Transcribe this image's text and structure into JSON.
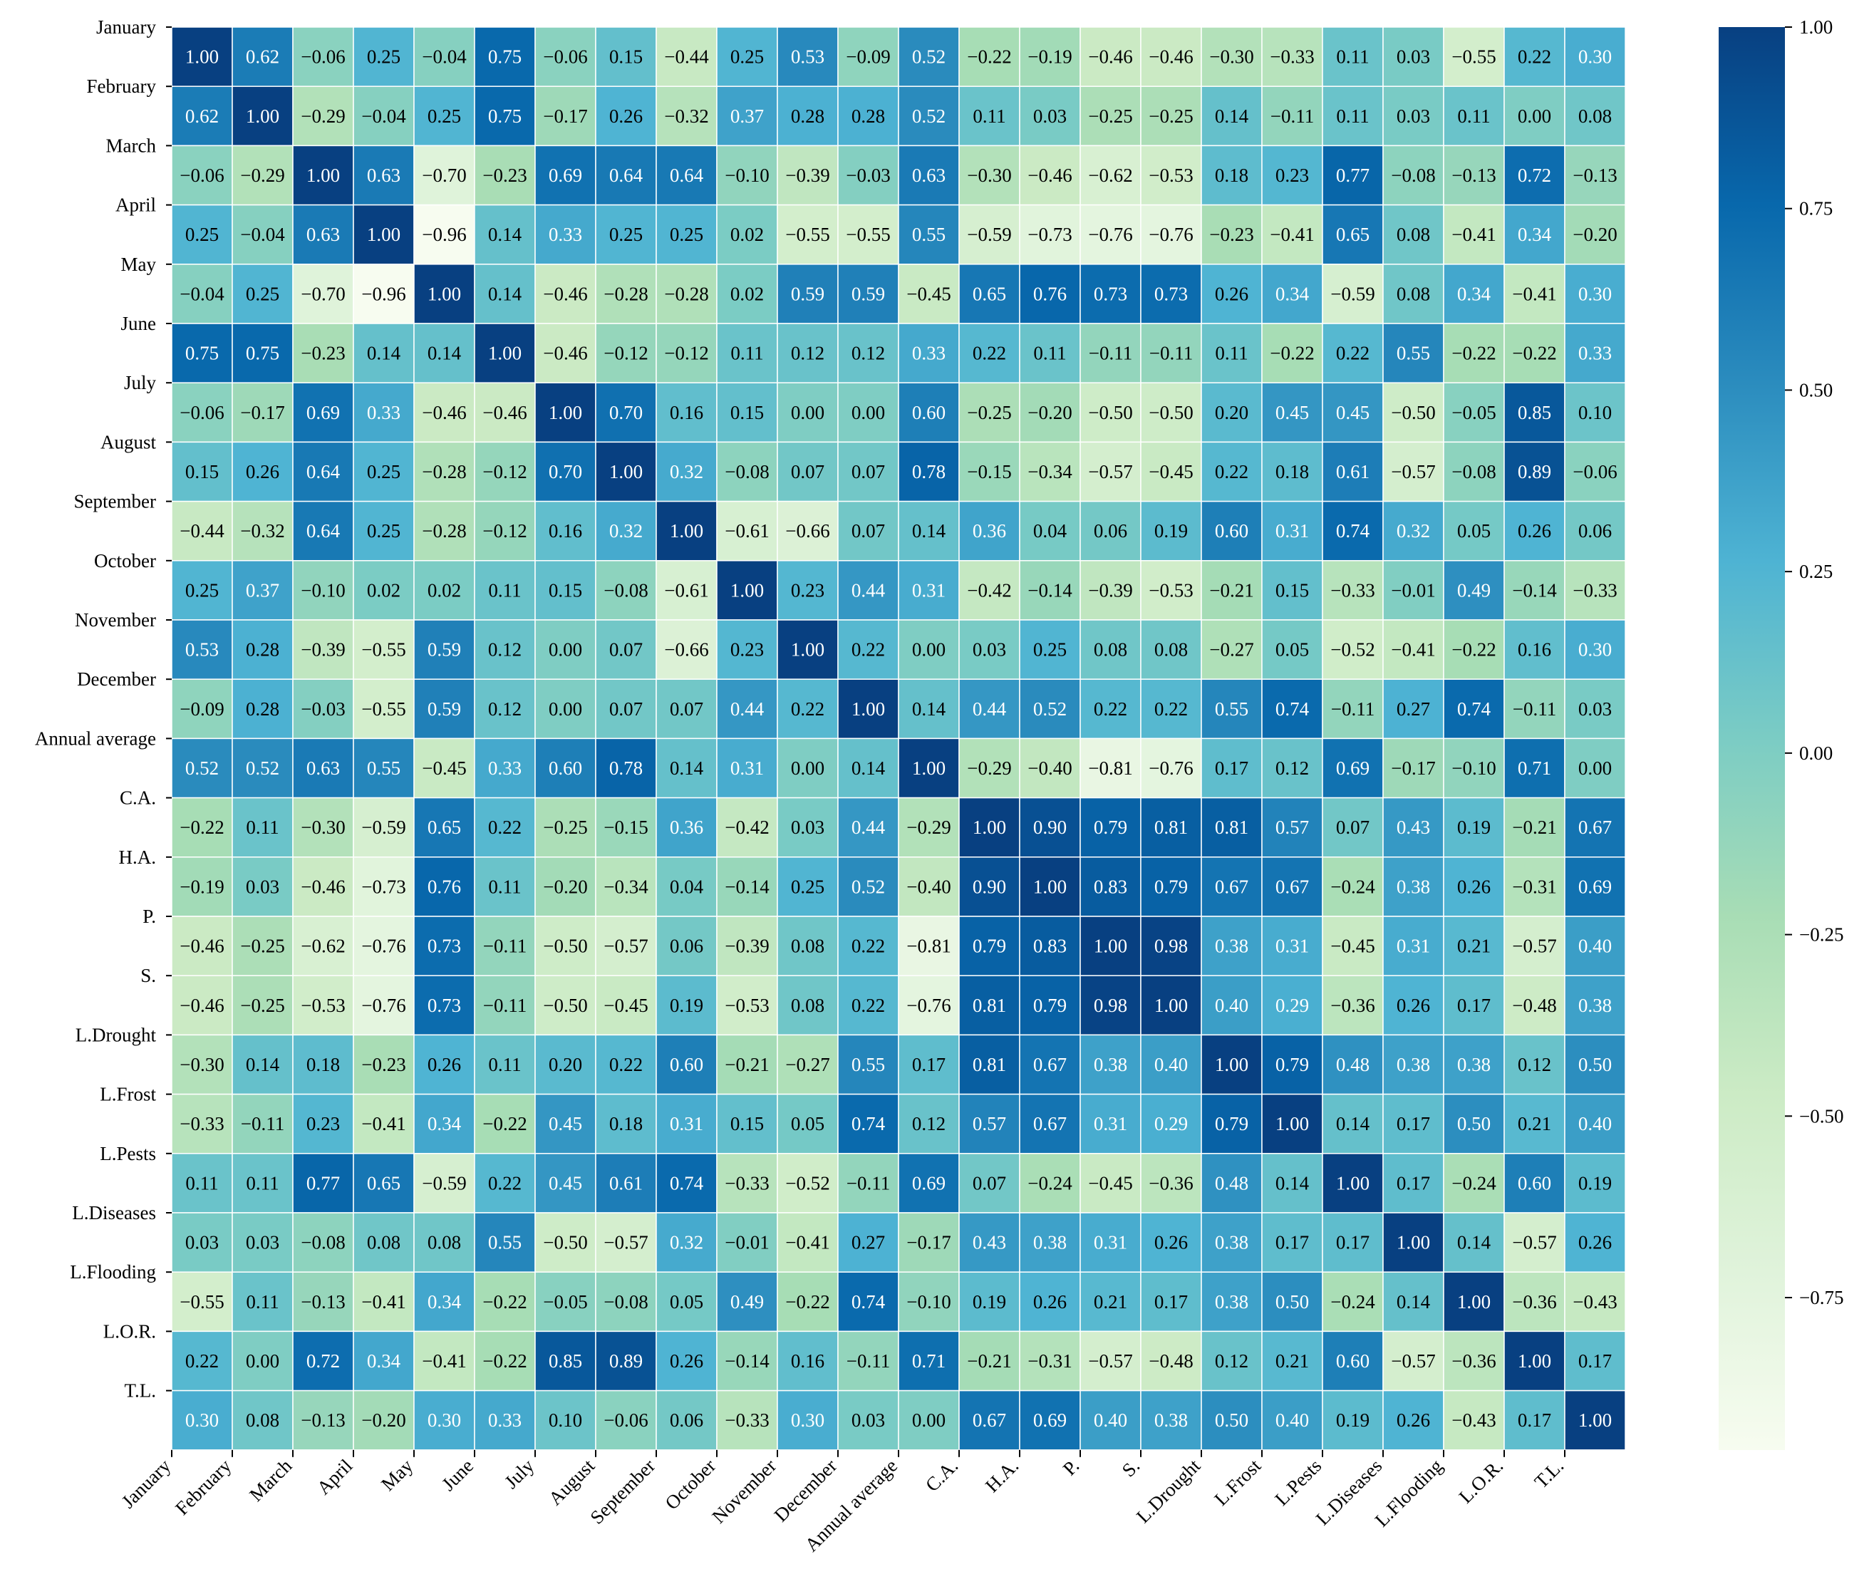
{
  "chart_data": {
    "type": "heatmap",
    "title": "",
    "xlabel": "",
    "ylabel": "",
    "labels": [
      "January",
      "February",
      "March",
      "April",
      "May",
      "June",
      "July",
      "August",
      "September",
      "October",
      "November",
      "December",
      "Annual average",
      "C.A.",
      "H.A.",
      "P.",
      "S.",
      "L.Drought",
      "L.Frost",
      "L.Pests",
      "L.Diseases",
      "L.Flooding",
      "L.O.R.",
      "T.L."
    ],
    "cell_text": [
      [
        "1.00",
        "0.62",
        "−0.06",
        "0.25",
        "−0.04",
        "0.75",
        "−0.06",
        "0.15",
        "−0.44",
        "0.25",
        "0.53",
        "−0.09",
        "0.52",
        "−0.22",
        "−0.19",
        "−0.46",
        "−0.46",
        "−0.30",
        "−0.33",
        "0.11",
        "0.03",
        "−0.55",
        "0.22",
        "0.30"
      ],
      [
        "0.62",
        "1.00",
        "−0.29",
        "−0.04",
        "0.25",
        "0.75",
        "−0.17",
        "0.26",
        "−0.32",
        "0.37",
        "0.28",
        "0.28",
        "0.52",
        "0.11",
        "0.03",
        "−0.25",
        "−0.25",
        "0.14",
        "−0.11",
        "0.11",
        "0.03",
        "0.11",
        "0.00",
        "0.08"
      ],
      [
        "−0.06",
        "−0.29",
        "1.00",
        "0.63",
        "−0.70",
        "−0.23",
        "0.69",
        "0.64",
        "0.64",
        "−0.10",
        "−0.39",
        "−0.03",
        "0.63",
        "−0.30",
        "−0.46",
        "−0.62",
        "−0.53",
        "0.18",
        "0.23",
        "0.77",
        "−0.08",
        "−0.13",
        "0.72",
        "−0.13"
      ],
      [
        "0.25",
        "−0.04",
        "0.63",
        "1.00",
        "−0.96",
        "0.14",
        "0.33",
        "0.25",
        "0.25",
        "0.02",
        "−0.55",
        "−0.55",
        "0.55",
        "−0.59",
        "−0.73",
        "−0.76",
        "−0.76",
        "−0.23",
        "−0.41",
        "0.65",
        "0.08",
        "−0.41",
        "0.34",
        "−0.20"
      ],
      [
        "−0.04",
        "0.25",
        "−0.70",
        "−0.96",
        "1.00",
        "0.14",
        "−0.46",
        "−0.28",
        "−0.28",
        "0.02",
        "0.59",
        "0.59",
        "−0.45",
        "0.65",
        "0.76",
        "0.73",
        "0.73",
        "0.26",
        "0.34",
        "−0.59",
        "0.08",
        "0.34",
        "−0.41",
        "0.30"
      ],
      [
        "0.75",
        "0.75",
        "−0.23",
        "0.14",
        "0.14",
        "1.00",
        "−0.46",
        "−0.12",
        "−0.12",
        "0.11",
        "0.12",
        "0.12",
        "0.33",
        "0.22",
        "0.11",
        "−0.11",
        "−0.11",
        "0.11",
        "−0.22",
        "0.22",
        "0.55",
        "−0.22",
        "−0.22",
        "0.33"
      ],
      [
        "−0.06",
        "−0.17",
        "0.69",
        "0.33",
        "−0.46",
        "−0.46",
        "1.00",
        "0.70",
        "0.16",
        "0.15",
        "0.00",
        "0.00",
        "0.60",
        "−0.25",
        "−0.20",
        "−0.50",
        "−0.50",
        "0.20",
        "0.45",
        "0.45",
        "−0.50",
        "−0.05",
        "0.85",
        "0.10"
      ],
      [
        "0.15",
        "0.26",
        "0.64",
        "0.25",
        "−0.28",
        "−0.12",
        "0.70",
        "1.00",
        "0.32",
        "−0.08",
        "0.07",
        "0.07",
        "0.78",
        "−0.15",
        "−0.34",
        "−0.57",
        "−0.45",
        "0.22",
        "0.18",
        "0.61",
        "−0.57",
        "−0.08",
        "0.89",
        "−0.06"
      ],
      [
        "−0.44",
        "−0.32",
        "0.64",
        "0.25",
        "−0.28",
        "−0.12",
        "0.16",
        "0.32",
        "1.00",
        "−0.61",
        "−0.66",
        "0.07",
        "0.14",
        "0.36",
        "0.04",
        "0.06",
        "0.19",
        "0.60",
        "0.31",
        "0.74",
        "0.32",
        "0.05",
        "0.26",
        "0.06"
      ],
      [
        "0.25",
        "0.37",
        "−0.10",
        "0.02",
        "0.02",
        "0.11",
        "0.15",
        "−0.08",
        "−0.61",
        "1.00",
        "0.23",
        "0.44",
        "0.31",
        "−0.42",
        "−0.14",
        "−0.39",
        "−0.53",
        "−0.21",
        "0.15",
        "−0.33",
        "−0.01",
        "0.49",
        "−0.14",
        "−0.33"
      ],
      [
        "0.53",
        "0.28",
        "−0.39",
        "−0.55",
        "0.59",
        "0.12",
        "0.00",
        "0.07",
        "−0.66",
        "0.23",
        "1.00",
        "0.22",
        "0.00",
        "0.03",
        "0.25",
        "0.08",
        "0.08",
        "−0.27",
        "0.05",
        "−0.52",
        "−0.41",
        "−0.22",
        "0.16",
        "0.30"
      ],
      [
        "−0.09",
        "0.28",
        "−0.03",
        "−0.55",
        "0.59",
        "0.12",
        "0.00",
        "0.07",
        "0.07",
        "0.44",
        "0.22",
        "1.00",
        "0.14",
        "0.44",
        "0.52",
        "0.22",
        "0.22",
        "0.55",
        "0.74",
        "−0.11",
        "0.27",
        "0.74",
        "−0.11",
        "0.03"
      ],
      [
        "0.52",
        "0.52",
        "0.63",
        "0.55",
        "−0.45",
        "0.33",
        "0.60",
        "0.78",
        "0.14",
        "0.31",
        "0.00",
        "0.14",
        "1.00",
        "−0.29",
        "−0.40",
        "−0.81",
        "−0.76",
        "0.17",
        "0.12",
        "0.69",
        "−0.17",
        "−0.10",
        "0.71",
        "0.00"
      ],
      [
        "−0.22",
        "0.11",
        "−0.30",
        "−0.59",
        "0.65",
        "0.22",
        "−0.25",
        "−0.15",
        "0.36",
        "−0.42",
        "0.03",
        "0.44",
        "−0.29",
        "1.00",
        "0.90",
        "0.79",
        "0.81",
        "0.81",
        "0.57",
        "0.07",
        "0.43",
        "0.19",
        "−0.21",
        "0.67"
      ],
      [
        "−0.19",
        "0.03",
        "−0.46",
        "−0.73",
        "0.76",
        "0.11",
        "−0.20",
        "−0.34",
        "0.04",
        "−0.14",
        "0.25",
        "0.52",
        "−0.40",
        "0.90",
        "1.00",
        "0.83",
        "0.79",
        "0.67",
        "0.67",
        "−0.24",
        "0.38",
        "0.26",
        "−0.31",
        "0.69"
      ],
      [
        "−0.46",
        "−0.25",
        "−0.62",
        "−0.76",
        "0.73",
        "−0.11",
        "−0.50",
        "−0.57",
        "0.06",
        "−0.39",
        "0.08",
        "0.22",
        "−0.81",
        "0.79",
        "0.83",
        "1.00",
        "0.98",
        "0.38",
        "0.31",
        "−0.45",
        "0.31",
        "0.21",
        "−0.57",
        "0.40"
      ],
      [
        "−0.46",
        "−0.25",
        "−0.53",
        "−0.76",
        "0.73",
        "−0.11",
        "−0.50",
        "−0.45",
        "0.19",
        "−0.53",
        "0.08",
        "0.22",
        "−0.76",
        "0.81",
        "0.79",
        "0.98",
        "1.00",
        "0.40",
        "0.29",
        "−0.36",
        "0.26",
        "0.17",
        "−0.48",
        "0.38"
      ],
      [
        "−0.30",
        "0.14",
        "0.18",
        "−0.23",
        "0.26",
        "0.11",
        "0.20",
        "0.22",
        "0.60",
        "−0.21",
        "−0.27",
        "0.55",
        "0.17",
        "0.81",
        "0.67",
        "0.38",
        "0.40",
        "1.00",
        "0.79",
        "0.48",
        "0.38",
        "0.38",
        "0.12",
        "0.50"
      ],
      [
        "−0.33",
        "−0.11",
        "0.23",
        "−0.41",
        "0.34",
        "−0.22",
        "0.45",
        "0.18",
        "0.31",
        "0.15",
        "0.05",
        "0.74",
        "0.12",
        "0.57",
        "0.67",
        "0.31",
        "0.29",
        "0.79",
        "1.00",
        "0.14",
        "0.17",
        "0.50",
        "0.21",
        "0.40"
      ],
      [
        "0.11",
        "0.11",
        "0.77",
        "0.65",
        "−0.59",
        "0.22",
        "0.45",
        "0.61",
        "0.74",
        "−0.33",
        "−0.52",
        "−0.11",
        "0.69",
        "0.07",
        "−0.24",
        "−0.45",
        "−0.36",
        "0.48",
        "0.14",
        "1.00",
        "0.17",
        "−0.24",
        "0.60",
        "0.19"
      ],
      [
        "0.03",
        "0.03",
        "−0.08",
        "0.08",
        "0.08",
        "0.55",
        "−0.50",
        "−0.57",
        "0.32",
        "−0.01",
        "−0.41",
        "0.27",
        "−0.17",
        "0.43",
        "0.38",
        "0.31",
        "0.26",
        "0.38",
        "0.17",
        "0.17",
        "1.00",
        "0.14",
        "−0.57",
        "0.26"
      ],
      [
        "−0.55",
        "0.11",
        "−0.13",
        "−0.41",
        "0.34",
        "−0.22",
        "−0.05",
        "−0.08",
        "0.05",
        "0.49",
        "−0.22",
        "0.74",
        "−0.10",
        "0.19",
        "0.26",
        "0.21",
        "0.17",
        "0.38",
        "0.50",
        "−0.24",
        "0.14",
        "1.00",
        "−0.36",
        "−0.43"
      ],
      [
        "0.22",
        "0.00",
        "0.72",
        "0.34",
        "−0.41",
        "−0.22",
        "0.85",
        "0.89",
        "0.26",
        "−0.14",
        "0.16",
        "−0.11",
        "0.71",
        "−0.21",
        "−0.31",
        "−0.57",
        "−0.48",
        "0.12",
        "0.21",
        "0.60",
        "−0.57",
        "−0.36",
        "1.00",
        "0.17"
      ],
      [
        "0.30",
        "0.08",
        "−0.13",
        "−0.20",
        "0.30",
        "0.33",
        "0.10",
        "−0.06",
        "0.06",
        "−0.33",
        "0.30",
        "0.03",
        "0.00",
        "0.67",
        "0.69",
        "0.40",
        "0.38",
        "0.50",
        "0.40",
        "0.19",
        "0.26",
        "−0.43",
        "0.17",
        "1.00"
      ]
    ],
    "zlim": [
      -0.96,
      1.0
    ],
    "colormap": "GnBu",
    "colormap_stops": [
      "#f7fcf0",
      "#e0f3db",
      "#ccebc5",
      "#a8ddb5",
      "#7bccc4",
      "#4eb3d3",
      "#2b8cbe",
      "#0868ac",
      "#084081"
    ],
    "colorbar": {
      "tick_values": [
        1.0,
        0.75,
        0.5,
        0.25,
        0.0,
        -0.25,
        -0.5,
        -0.75
      ],
      "tick_labels": [
        "1.00",
        "0.75",
        "0.50",
        "0.25",
        "0.00",
        "−0.25",
        "−0.50",
        "−0.75"
      ],
      "position": "right"
    },
    "grid": true,
    "annotations": true
  }
}
